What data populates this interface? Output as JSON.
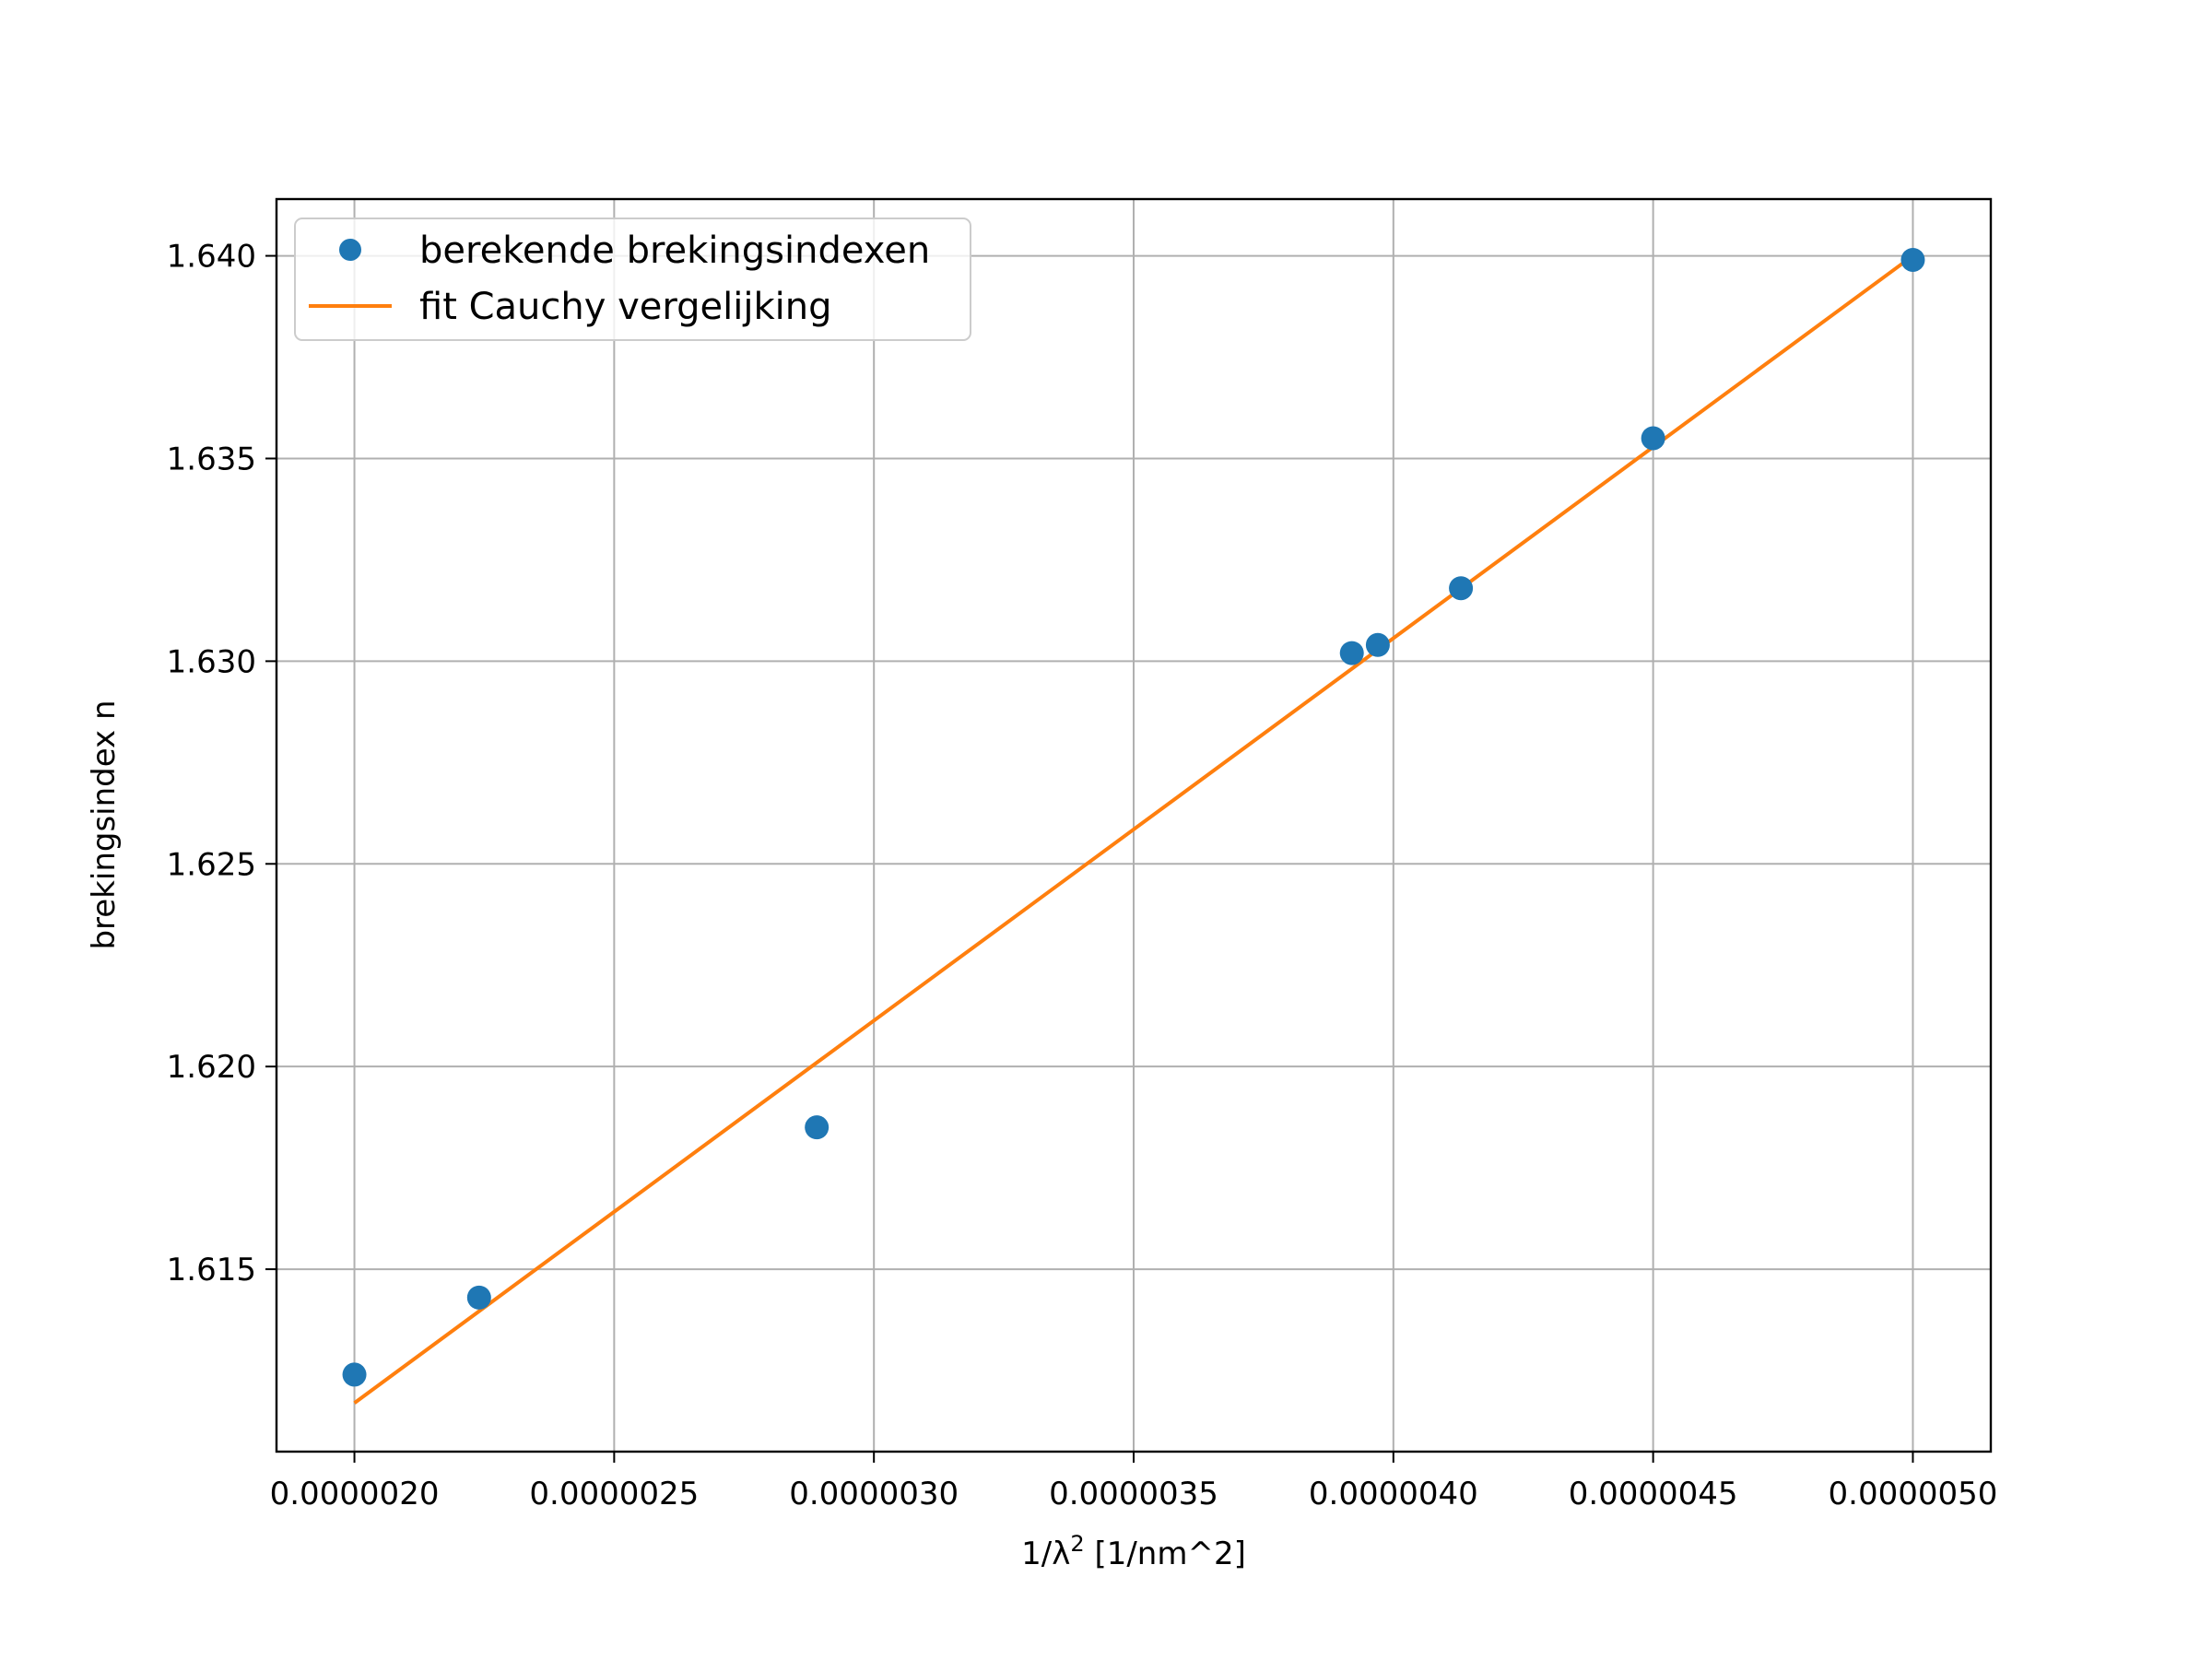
{
  "chart_data": {
    "type": "scatter",
    "title": "",
    "xlabel_prefix": "1/λ",
    "xlabel_sup": "2",
    "xlabel_suffix": " [1/nm^2]",
    "ylabel": "brekingsindex n",
    "xlim": [
      1.85e-06,
      5.15e-06
    ],
    "ylim": [
      1.6105,
      1.6414
    ],
    "x_ticks": [
      2e-06,
      2.5e-06,
      3e-06,
      3.5e-06,
      4e-06,
      4.5e-06,
      5e-06
    ],
    "x_tick_labels": [
      "0.0000020",
      "0.0000025",
      "0.0000030",
      "0.0000035",
      "0.0000040",
      "0.0000045",
      "0.0000050"
    ],
    "y_ticks": [
      1.615,
      1.62,
      1.625,
      1.63,
      1.635,
      1.64
    ],
    "y_tick_labels": [
      "1.615",
      "1.620",
      "1.625",
      "1.630",
      "1.635",
      "1.640"
    ],
    "grid": true,
    "legend_position": "top-left",
    "series": [
      {
        "name": "berekende brekingsindexen",
        "kind": "points",
        "color": "#1f77b4",
        "x": [
          2e-06,
          2.24e-06,
          2.89e-06,
          3.92e-06,
          3.97e-06,
          4.13e-06,
          4.5e-06,
          5e-06
        ],
        "y": [
          1.6124,
          1.6143,
          1.6185,
          1.6302,
          1.6304,
          1.6318,
          1.6355,
          1.6399
        ]
      },
      {
        "name": "fit Cauchy vergelijking",
        "kind": "line",
        "color": "#ff7f0e",
        "x": [
          2e-06,
          5e-06
        ],
        "y": [
          1.6117,
          1.64
        ]
      }
    ]
  }
}
